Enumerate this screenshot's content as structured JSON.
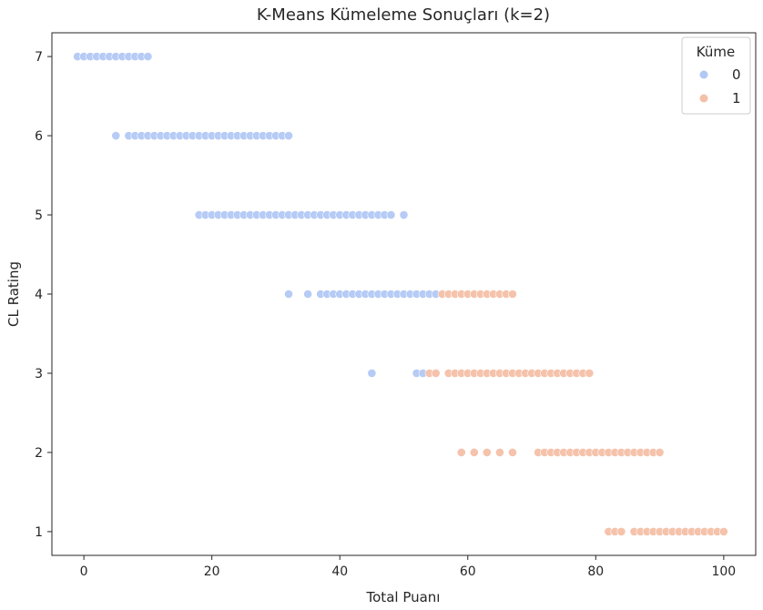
{
  "chart_data": {
    "type": "scatter",
    "title": "K-Means Kümeleme Sonuçları (k=2)",
    "xlabel": "Total Puanı",
    "ylabel": "CL Rating",
    "xlim": [
      -5,
      105
    ],
    "ylim": [
      0.7,
      7.3
    ],
    "x_ticks": [
      0,
      20,
      40,
      60,
      80,
      100
    ],
    "y_ticks": [
      1,
      2,
      3,
      4,
      5,
      6,
      7
    ],
    "grid": false,
    "legend": {
      "title": "Küme",
      "placement": "top-right",
      "entries": [
        "0",
        "1"
      ]
    },
    "series": [
      {
        "name": "0",
        "color": "#b2c8f4",
        "points": [
          [
            -1,
            7
          ],
          [
            0,
            7
          ],
          [
            1,
            7
          ],
          [
            2,
            7
          ],
          [
            3,
            7
          ],
          [
            4,
            7
          ],
          [
            5,
            7
          ],
          [
            6,
            7
          ],
          [
            7,
            7
          ],
          [
            8,
            7
          ],
          [
            9,
            7
          ],
          [
            10,
            7
          ],
          [
            5,
            6
          ],
          [
            7,
            6
          ],
          [
            8,
            6
          ],
          [
            9,
            6
          ],
          [
            10,
            6
          ],
          [
            11,
            6
          ],
          [
            12,
            6
          ],
          [
            13,
            6
          ],
          [
            14,
            6
          ],
          [
            15,
            6
          ],
          [
            16,
            6
          ],
          [
            17,
            6
          ],
          [
            18,
            6
          ],
          [
            19,
            6
          ],
          [
            20,
            6
          ],
          [
            21,
            6
          ],
          [
            22,
            6
          ],
          [
            23,
            6
          ],
          [
            24,
            6
          ],
          [
            25,
            6
          ],
          [
            26,
            6
          ],
          [
            27,
            6
          ],
          [
            28,
            6
          ],
          [
            29,
            6
          ],
          [
            30,
            6
          ],
          [
            31,
            6
          ],
          [
            32,
            6
          ],
          [
            18,
            5
          ],
          [
            19,
            5
          ],
          [
            20,
            5
          ],
          [
            21,
            5
          ],
          [
            22,
            5
          ],
          [
            23,
            5
          ],
          [
            24,
            5
          ],
          [
            25,
            5
          ],
          [
            26,
            5
          ],
          [
            27,
            5
          ],
          [
            28,
            5
          ],
          [
            29,
            5
          ],
          [
            30,
            5
          ],
          [
            31,
            5
          ],
          [
            32,
            5
          ],
          [
            33,
            5
          ],
          [
            34,
            5
          ],
          [
            35,
            5
          ],
          [
            36,
            5
          ],
          [
            37,
            5
          ],
          [
            38,
            5
          ],
          [
            39,
            5
          ],
          [
            40,
            5
          ],
          [
            41,
            5
          ],
          [
            42,
            5
          ],
          [
            43,
            5
          ],
          [
            44,
            5
          ],
          [
            45,
            5
          ],
          [
            46,
            5
          ],
          [
            47,
            5
          ],
          [
            48,
            5
          ],
          [
            50,
            5
          ],
          [
            32,
            4
          ],
          [
            35,
            4
          ],
          [
            37,
            4
          ],
          [
            38,
            4
          ],
          [
            39,
            4
          ],
          [
            40,
            4
          ],
          [
            41,
            4
          ],
          [
            42,
            4
          ],
          [
            43,
            4
          ],
          [
            44,
            4
          ],
          [
            45,
            4
          ],
          [
            46,
            4
          ],
          [
            47,
            4
          ],
          [
            48,
            4
          ],
          [
            49,
            4
          ],
          [
            50,
            4
          ],
          [
            51,
            4
          ],
          [
            52,
            4
          ],
          [
            53,
            4
          ],
          [
            54,
            4
          ],
          [
            55,
            4
          ],
          [
            45,
            3
          ],
          [
            52,
            3
          ],
          [
            53,
            3
          ]
        ]
      },
      {
        "name": "1",
        "color": "#f4c0a8",
        "points": [
          [
            56,
            4
          ],
          [
            57,
            4
          ],
          [
            58,
            4
          ],
          [
            59,
            4
          ],
          [
            60,
            4
          ],
          [
            61,
            4
          ],
          [
            62,
            4
          ],
          [
            63,
            4
          ],
          [
            64,
            4
          ],
          [
            65,
            4
          ],
          [
            66,
            4
          ],
          [
            67,
            4
          ],
          [
            54,
            3
          ],
          [
            55,
            3
          ],
          [
            57,
            3
          ],
          [
            58,
            3
          ],
          [
            59,
            3
          ],
          [
            60,
            3
          ],
          [
            61,
            3
          ],
          [
            62,
            3
          ],
          [
            63,
            3
          ],
          [
            64,
            3
          ],
          [
            65,
            3
          ],
          [
            66,
            3
          ],
          [
            67,
            3
          ],
          [
            68,
            3
          ],
          [
            69,
            3
          ],
          [
            70,
            3
          ],
          [
            71,
            3
          ],
          [
            72,
            3
          ],
          [
            73,
            3
          ],
          [
            74,
            3
          ],
          [
            75,
            3
          ],
          [
            76,
            3
          ],
          [
            77,
            3
          ],
          [
            78,
            3
          ],
          [
            79,
            3
          ],
          [
            59,
            2
          ],
          [
            61,
            2
          ],
          [
            63,
            2
          ],
          [
            65,
            2
          ],
          [
            67,
            2
          ],
          [
            71,
            2
          ],
          [
            72,
            2
          ],
          [
            73,
            2
          ],
          [
            74,
            2
          ],
          [
            75,
            2
          ],
          [
            76,
            2
          ],
          [
            77,
            2
          ],
          [
            78,
            2
          ],
          [
            79,
            2
          ],
          [
            80,
            2
          ],
          [
            81,
            2
          ],
          [
            82,
            2
          ],
          [
            83,
            2
          ],
          [
            84,
            2
          ],
          [
            85,
            2
          ],
          [
            86,
            2
          ],
          [
            87,
            2
          ],
          [
            88,
            2
          ],
          [
            89,
            2
          ],
          [
            90,
            2
          ],
          [
            82,
            1
          ],
          [
            83,
            1
          ],
          [
            84,
            1
          ],
          [
            86,
            1
          ],
          [
            87,
            1
          ],
          [
            88,
            1
          ],
          [
            89,
            1
          ],
          [
            90,
            1
          ],
          [
            91,
            1
          ],
          [
            92,
            1
          ],
          [
            93,
            1
          ],
          [
            94,
            1
          ],
          [
            95,
            1
          ],
          [
            96,
            1
          ],
          [
            97,
            1
          ],
          [
            98,
            1
          ],
          [
            99,
            1
          ],
          [
            100,
            1
          ]
        ]
      }
    ]
  }
}
